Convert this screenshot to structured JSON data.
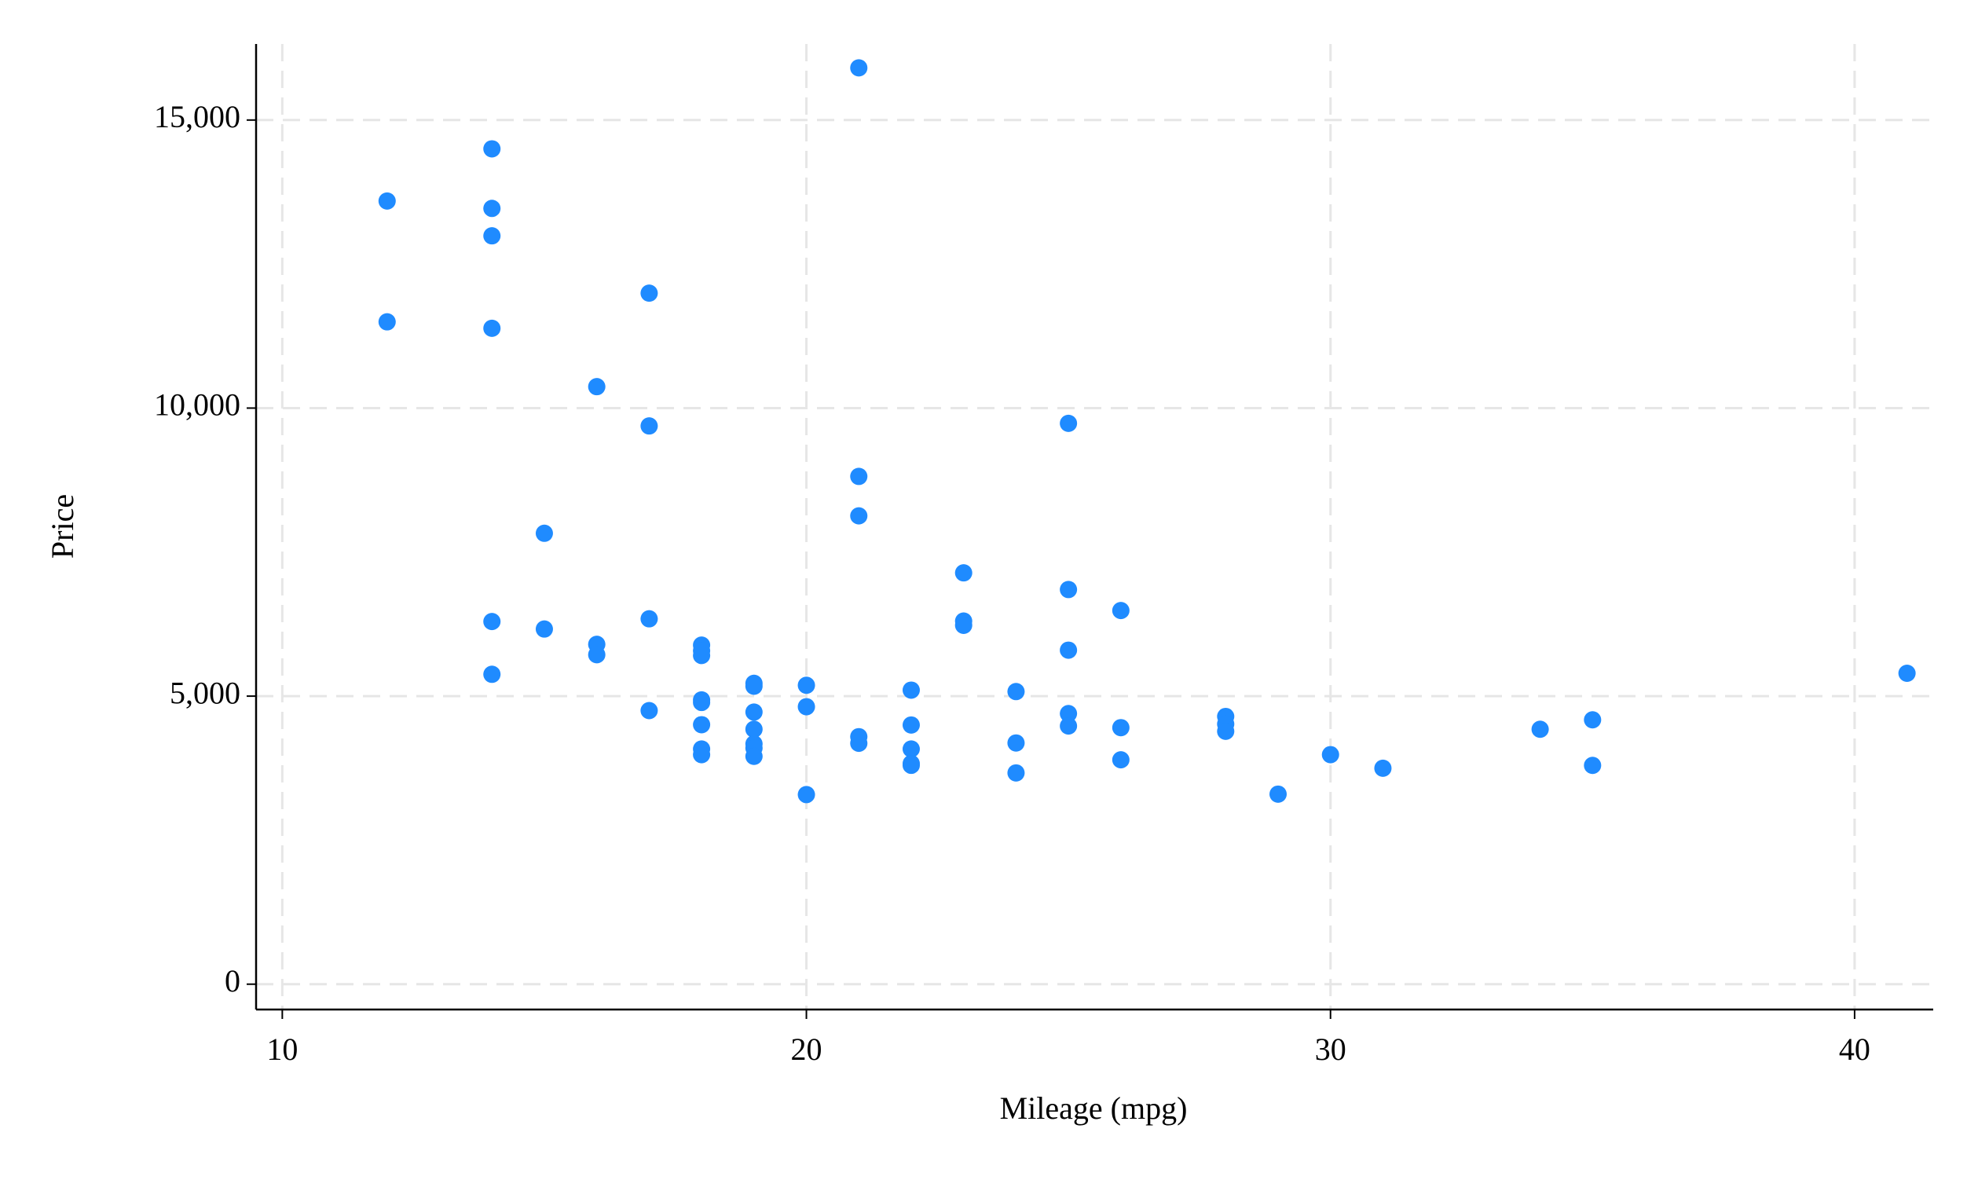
{
  "chart_data": {
    "type": "scatter",
    "xlabel": "Mileage (mpg)",
    "ylabel": "Price",
    "color": "#1f8bff",
    "grid": true,
    "x": [
      12,
      12,
      14,
      14,
      14,
      14,
      14,
      14,
      15,
      15,
      16,
      16,
      16,
      17,
      17,
      17,
      17,
      18,
      18,
      18,
      18,
      18,
      18,
      18,
      18,
      19,
      19,
      19,
      19,
      19,
      19,
      19,
      20,
      20,
      20,
      21,
      21,
      21,
      21,
      21,
      22,
      22,
      22,
      22,
      22,
      23,
      23,
      23,
      24,
      24,
      24,
      25,
      25,
      25,
      25,
      25,
      26,
      26,
      26,
      28,
      28,
      28,
      29,
      30,
      31,
      34,
      35,
      35,
      41
    ],
    "values": [
      13594,
      11497,
      14500,
      13466,
      12990,
      11385,
      6295,
      5379,
      7827,
      6165,
      10372,
      5899,
      5719,
      11995,
      9690,
      6342,
      4749,
      5886,
      5788,
      5705,
      4934,
      4890,
      4504,
      4082,
      3984,
      5222,
      5172,
      4723,
      4425,
      4172,
      4099,
      3955,
      5189,
      4816,
      3291,
      15906,
      8814,
      8129,
      4296,
      4181,
      5104,
      4499,
      4082,
      3799,
      3829,
      7140,
      6303,
      6229,
      5079,
      4187,
      3667,
      9735,
      6850,
      5798,
      4697,
      4482,
      6486,
      4453,
      3895,
      4647,
      4516,
      4389,
      3299,
      3984,
      3748,
      4425,
      4589,
      3798,
      5397
    ],
    "xlim": [
      9.5,
      41.5
    ],
    "ylim": [
      -440,
      16320
    ],
    "xticks": [
      10,
      20,
      30,
      40
    ],
    "yticks": [
      0,
      {
        "value": 5000,
        "label": "5,000"
      },
      {
        "value": 10000,
        "label": "10,000"
      },
      {
        "value": 15000,
        "label": "15,000"
      }
    ]
  }
}
